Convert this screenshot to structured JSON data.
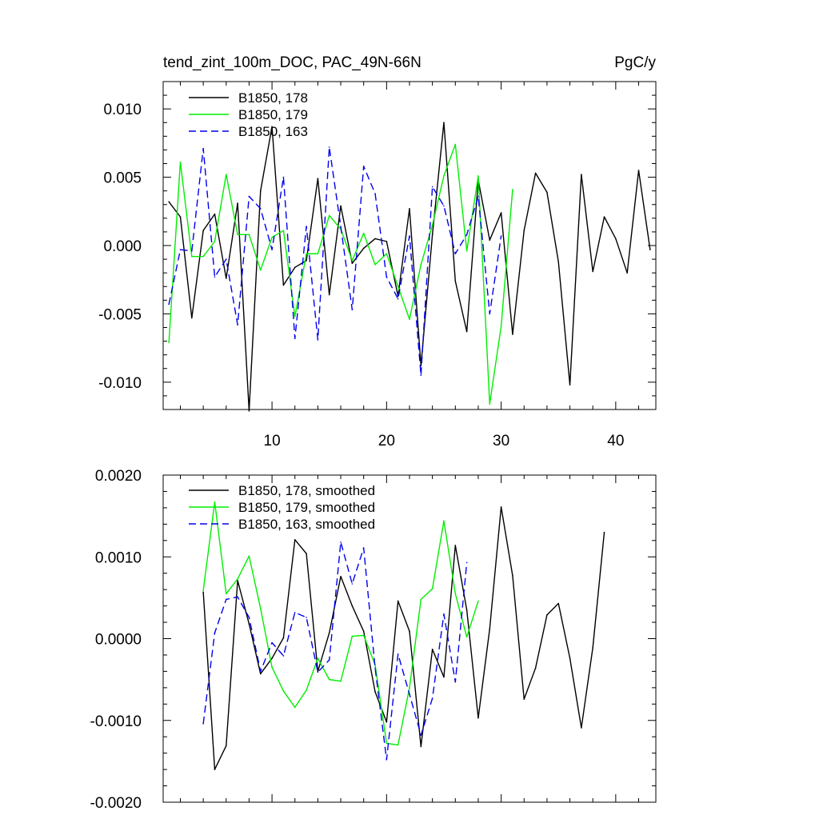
{
  "header": {
    "left_title": "tend_zint_100m_DOC, PAC_49N-66N",
    "right_title": "PgC/y"
  },
  "chart_data": [
    {
      "type": "line",
      "title": "tend_zint_100m_DOC, PAC_49N-66N",
      "units": "PgC/y",
      "xlim": [
        0.5,
        43.5
      ],
      "ylim": [
        -0.012,
        0.012
      ],
      "x_ticks": [
        10,
        20,
        30,
        40
      ],
      "x_tick_labels": [
        "10",
        "20",
        "30",
        "40"
      ],
      "y_ticks": [
        -0.01,
        -0.005,
        0.0,
        0.005,
        0.01
      ],
      "y_tick_labels": [
        "-0.010",
        "-0.005",
        "0.000",
        "0.005",
        "0.010"
      ],
      "legend": "top-left",
      "series": [
        {
          "name": "B1850, 178",
          "color": "#000000",
          "dash": "solid",
          "x_start": 1,
          "values": [
            0.0032,
            0.0021,
            -0.0053,
            0.0011,
            0.0023,
            -0.0024,
            0.0031,
            -0.0121,
            0.004,
            0.0087,
            -0.0029,
            -0.0016,
            -0.0011,
            0.0049,
            -0.0036,
            0.0029,
            -0.0013,
            -0.0002,
            0.0005,
            0.0003,
            -0.0037,
            0.0027,
            -0.0088,
            0.0008,
            0.009,
            -0.0026,
            -0.0063,
            0.0048,
            0.0004,
            0.0024,
            -0.0065,
            0.0011,
            0.0053,
            0.0039,
            -0.0012,
            -0.0102,
            0.0052,
            -0.0019,
            0.0021,
            0.0005,
            -0.002,
            0.0055,
            -0.0003
          ]
        },
        {
          "name": "B1850, 179",
          "color": "#00ee00",
          "dash": "solid",
          "x_start": 1,
          "values": [
            -0.0071,
            0.0061,
            -0.0008,
            -0.0008,
            0.0003,
            0.0052,
            0.0008,
            0.0008,
            -0.0018,
            0.0006,
            0.0011,
            -0.0052,
            -0.0006,
            -0.0006,
            0.0022,
            0.0012,
            -0.0011,
            0.0009,
            -0.0014,
            -0.0006,
            -0.003,
            -0.0054,
            -0.0014,
            0.0015,
            0.0051,
            0.0074,
            -0.0004,
            0.0051,
            -0.0116,
            -0.0059,
            0.0041
          ]
        },
        {
          "name": "B1850, 163",
          "color": "#0000ee",
          "dash": "dashed",
          "x_start": 1,
          "values": [
            -0.0043,
            -0.0003,
            -0.0004,
            0.0071,
            -0.0023,
            -0.001,
            -0.0058,
            0.0036,
            0.0027,
            -0.0003,
            0.005,
            -0.0068,
            0.0014,
            -0.0069,
            0.0072,
            0.0014,
            -0.0047,
            0.0058,
            0.0038,
            -0.0023,
            -0.0039,
            0.0007,
            -0.0095,
            0.0043,
            0.0029,
            -0.0006,
            0.0008,
            0.0036,
            -0.005,
            0.0007
          ]
        }
      ]
    },
    {
      "type": "line",
      "xlim": [
        0.5,
        43.5
      ],
      "ylim": [
        -0.002,
        0.002
      ],
      "x_ticks": [
        10,
        20,
        30,
        40
      ],
      "x_tick_labels": [],
      "y_ticks": [
        -0.002,
        -0.001,
        0.0,
        0.001,
        0.002
      ],
      "y_tick_labels": [
        "-0.0020",
        "-0.0010",
        "0.0000",
        "0.0010",
        "0.0020"
      ],
      "legend": "top-left",
      "series": [
        {
          "name": "B1850, 178, smoothed",
          "color": "#000000",
          "dash": "solid",
          "x_start": 4,
          "values": [
            0.00057,
            -0.0016,
            -0.00131,
            0.00071,
            0.00018,
            -0.00043,
            -0.00024,
            1e-05,
            0.00121,
            0.00104,
            -0.0004,
            7e-05,
            0.00076,
            0.0004,
            9e-05,
            -0.00065,
            -0.00102,
            0.00046,
            9e-05,
            -0.00132,
            -0.00013,
            -0.00047,
            0.00114,
            0.00035,
            -0.00097,
            0.00012,
            0.00161,
            0.00077,
            -0.00074,
            -0.00036,
            0.00029,
            0.00043,
            -0.00024,
            -0.00109,
            -0.00011,
            0.0013
          ]
        },
        {
          "name": "B1850, 179, smoothed",
          "color": "#00ee00",
          "dash": "solid",
          "x_start": 4,
          "values": [
            0.00059,
            0.00167,
            0.00055,
            0.00073,
            0.00101,
            0.00037,
            -0.00035,
            -0.00064,
            -0.00084,
            -0.00063,
            -0.00024,
            -0.0005,
            -0.00052,
            3e-05,
            4e-05,
            -0.00032,
            -0.00128,
            -0.0013,
            -0.0006,
            0.00048,
            0.00061,
            0.00144,
            0.00055,
            2e-05,
            0.00046
          ]
        },
        {
          "name": "B1850, 163, smoothed",
          "color": "#0000ee",
          "dash": "dashed",
          "x_start": 4,
          "values": [
            -0.00104,
            7e-05,
            0.00048,
            0.00051,
            0.00026,
            -0.0004,
            -5e-05,
            -0.00021,
            0.00032,
            0.00026,
            -0.00041,
            -0.00026,
            0.00118,
            0.00067,
            0.00111,
            -0.00036,
            -0.00148,
            -0.00019,
            -0.00068,
            -0.00118,
            -0.00073,
            0.0003,
            -0.00053,
            0.00093
          ]
        }
      ]
    }
  ]
}
